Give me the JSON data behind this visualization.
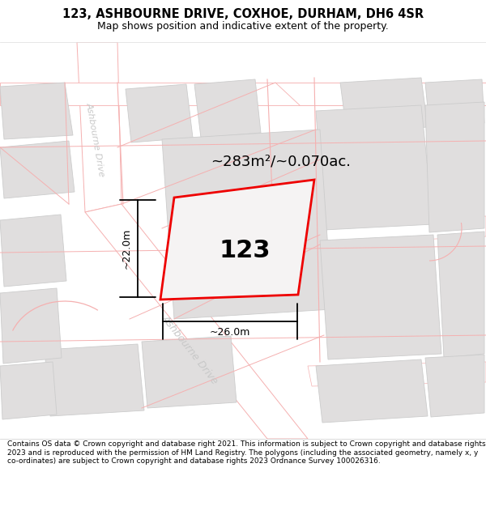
{
  "title_line1": "123, ASHBOURNE DRIVE, COXHOE, DURHAM, DH6 4SR",
  "title_line2": "Map shows position and indicative extent of the property.",
  "area_text": "~283m²/~0.070ac.",
  "dim_vertical": "~22.0m",
  "dim_horizontal": "~26.0m",
  "property_number": "123",
  "street_label_diag": "Ashbourne Drive",
  "street_label_vert": "Ashbourne Drive",
  "footer_text": "Contains OS data © Crown copyright and database right 2021. This information is subject to Crown copyright and database rights 2023 and is reproduced with the permission of HM Land Registry. The polygons (including the associated geometry, namely x, y co-ordinates) are subject to Crown copyright and database rights 2023 Ordnance Survey 100026316.",
  "map_bg": "#f2f0f0",
  "road_white": "#ffffff",
  "building_fill": "#e0dede",
  "building_edge": "#cccccc",
  "plot_line": "#f5b0b0",
  "red_outline": "#ee0000",
  "title_bg": "#ffffff",
  "footer_bg": "#ffffff",
  "street_text_color": "#c8c8c8",
  "title_fontsize": 10.5,
  "subtitle_fontsize": 9,
  "area_fontsize": 13,
  "number_fontsize": 22,
  "dim_fontsize": 9,
  "street_fontsize": 9,
  "footer_fontsize": 6.5
}
